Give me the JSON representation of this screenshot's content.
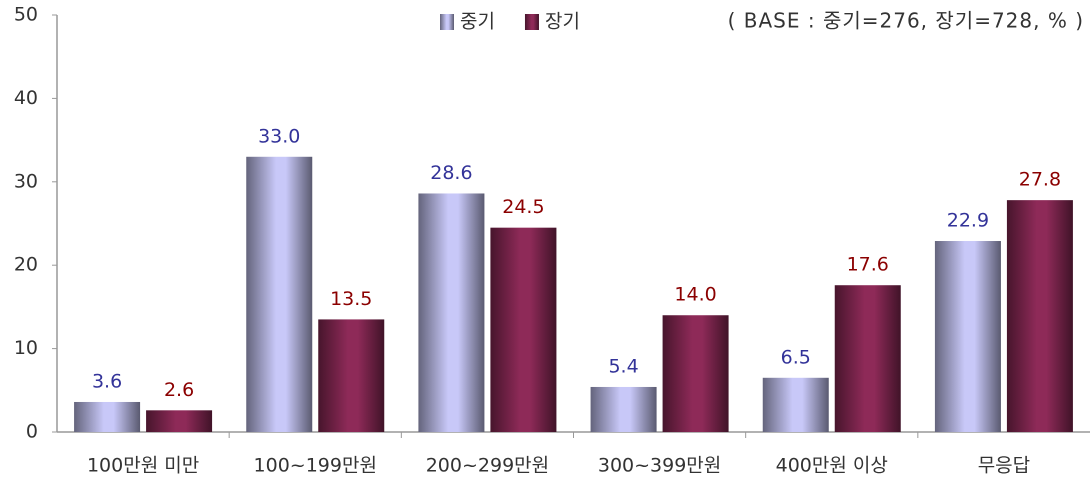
{
  "chart_data": {
    "type": "bar",
    "annotation": "( BASE : 중기=276, 장기=728, % )",
    "categories": [
      "100만원 미만",
      "100~199만원",
      "200~299만원",
      "300~399만원",
      "400만원 이상",
      "무응답"
    ],
    "series": [
      {
        "name": "중기",
        "color": "#c8c8f8",
        "label_color": "#333399",
        "values": [
          3.6,
          33,
          28.6,
          5.4,
          6.5,
          22.9
        ],
        "value_labels": [
          "3.6",
          "33.0",
          "28.6",
          "5.4",
          "6.5",
          "22.9"
        ]
      },
      {
        "name": "장기",
        "color": "#8e2a58",
        "label_color": "#8b0000",
        "values": [
          2.6,
          13.5,
          24.5,
          14,
          17.6,
          27.8
        ],
        "value_labels": [
          "2.6",
          "13.5",
          "24.5",
          "14.0",
          "17.6",
          "27.8"
        ]
      }
    ],
    "ylim": [
      0,
      50
    ],
    "yticks": [
      0,
      10,
      20,
      30,
      40,
      50
    ],
    "grid": false
  }
}
